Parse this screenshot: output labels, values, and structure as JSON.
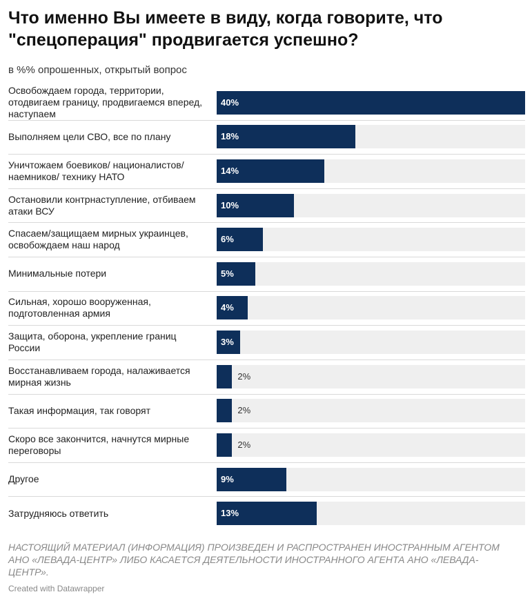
{
  "header": {
    "title": "Что именно Вы имеете в виду, когда говорите, что \"спецоперация\" продвигается успешно?",
    "subtitle": "в %% опрошенных, открытый вопрос"
  },
  "chart_data": {
    "type": "bar",
    "orientation": "horizontal",
    "unit": "%",
    "xlim": [
      0,
      40
    ],
    "categories": [
      "Освобождаем города, территории, отодвигаем границу, продвигаемся вперед, наступаем",
      "Выполняем цели СВО, все по плану",
      "Уничтожаем боевиков/ националистов/ наемников/ технику НАТО",
      "Остановили контрнаступление, отбиваем атаки ВСУ",
      "Спасаем/защищаем мирных украинцев, освобождаем наш народ",
      "Минимальные потери",
      "Сильная, хорошо вооруженная, подготовленная армия",
      "Защита, оборона, укрепление границ России",
      "Восстанавливаем города, налаживается мирная жизнь",
      "Такая информация, так говорят",
      "Скоро все закончится, начнутся мирные переговоры",
      "Другое",
      "Затрудняюсь ответить"
    ],
    "values": [
      40,
      18,
      14,
      10,
      6,
      5,
      4,
      3,
      2,
      2,
      2,
      9,
      13
    ],
    "value_labels": [
      "40%",
      "18%",
      "14%",
      "10%",
      "6%",
      "5%",
      "4%",
      "3%",
      "2%",
      "2%",
      "2%",
      "9%",
      "13%"
    ],
    "colors": {
      "bar": "#0e2f5a",
      "track": "#efefef"
    }
  },
  "footer": {
    "note": "НАСТОЯЩИЙ МАТЕРИАЛ (ИНФОРМАЦИЯ) ПРОИЗВЕДЕН И РАСПРОСТРАНЕН ИНОСТРАННЫМ АГЕНТОМ АНО «ЛЕВАДА-ЦЕНТР» ЛИБО КАСАЕТСЯ ДЕЯТЕЛЬНОСТИ ИНОСТРАННОГО АГЕНТА АНО «ЛЕВАДА-ЦЕНТР».",
    "credit": "Created with Datawrapper"
  }
}
